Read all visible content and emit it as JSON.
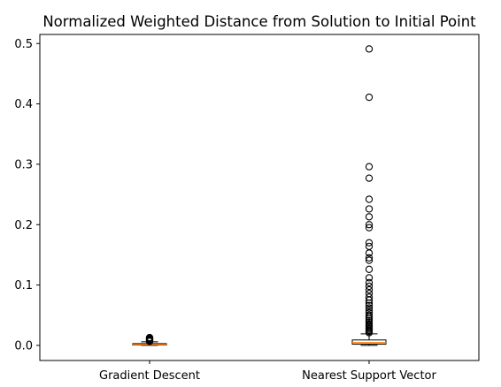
{
  "chart_data": {
    "type": "box",
    "title": "Normalized Weighted Distance from Solution to Initial Point",
    "xlabel": "",
    "ylabel": "",
    "ylim": [
      -0.025,
      0.515
    ],
    "yticks": [
      0.0,
      0.1,
      0.2,
      0.3,
      0.4,
      0.5
    ],
    "ytick_labels": [
      "0.0",
      "0.1",
      "0.2",
      "0.3",
      "0.4",
      "0.5"
    ],
    "categories": [
      "Gradient Descent",
      "Nearest Support Vector"
    ],
    "colors": {
      "box": "#000000",
      "median": "#ff7f0e",
      "flier": "#000000"
    },
    "boxes": [
      {
        "name": "Gradient Descent",
        "whisker_low": 0.0,
        "q1": 0.0006,
        "median": 0.0015,
        "q3": 0.003,
        "whisker_high": 0.006,
        "fliers": [
          0.0068,
          0.0075,
          0.0082,
          0.009,
          0.0098,
          0.0105,
          0.0112,
          0.0118,
          0.0125,
          0.013
        ]
      },
      {
        "name": "Nearest Support Vector",
        "whisker_low": 0.0,
        "q1": 0.002,
        "median": 0.0045,
        "q3": 0.009,
        "whisker_high": 0.019,
        "fliers": [
          0.021,
          0.023,
          0.025,
          0.027,
          0.029,
          0.031,
          0.033,
          0.035,
          0.038,
          0.041,
          0.044,
          0.047,
          0.05,
          0.054,
          0.058,
          0.062,
          0.066,
          0.07,
          0.075,
          0.08,
          0.086,
          0.092,
          0.098,
          0.104,
          0.112,
          0.126,
          0.141,
          0.145,
          0.153,
          0.164,
          0.17,
          0.195,
          0.2,
          0.213,
          0.226,
          0.242,
          0.277,
          0.296,
          0.411,
          0.491
        ]
      }
    ]
  }
}
